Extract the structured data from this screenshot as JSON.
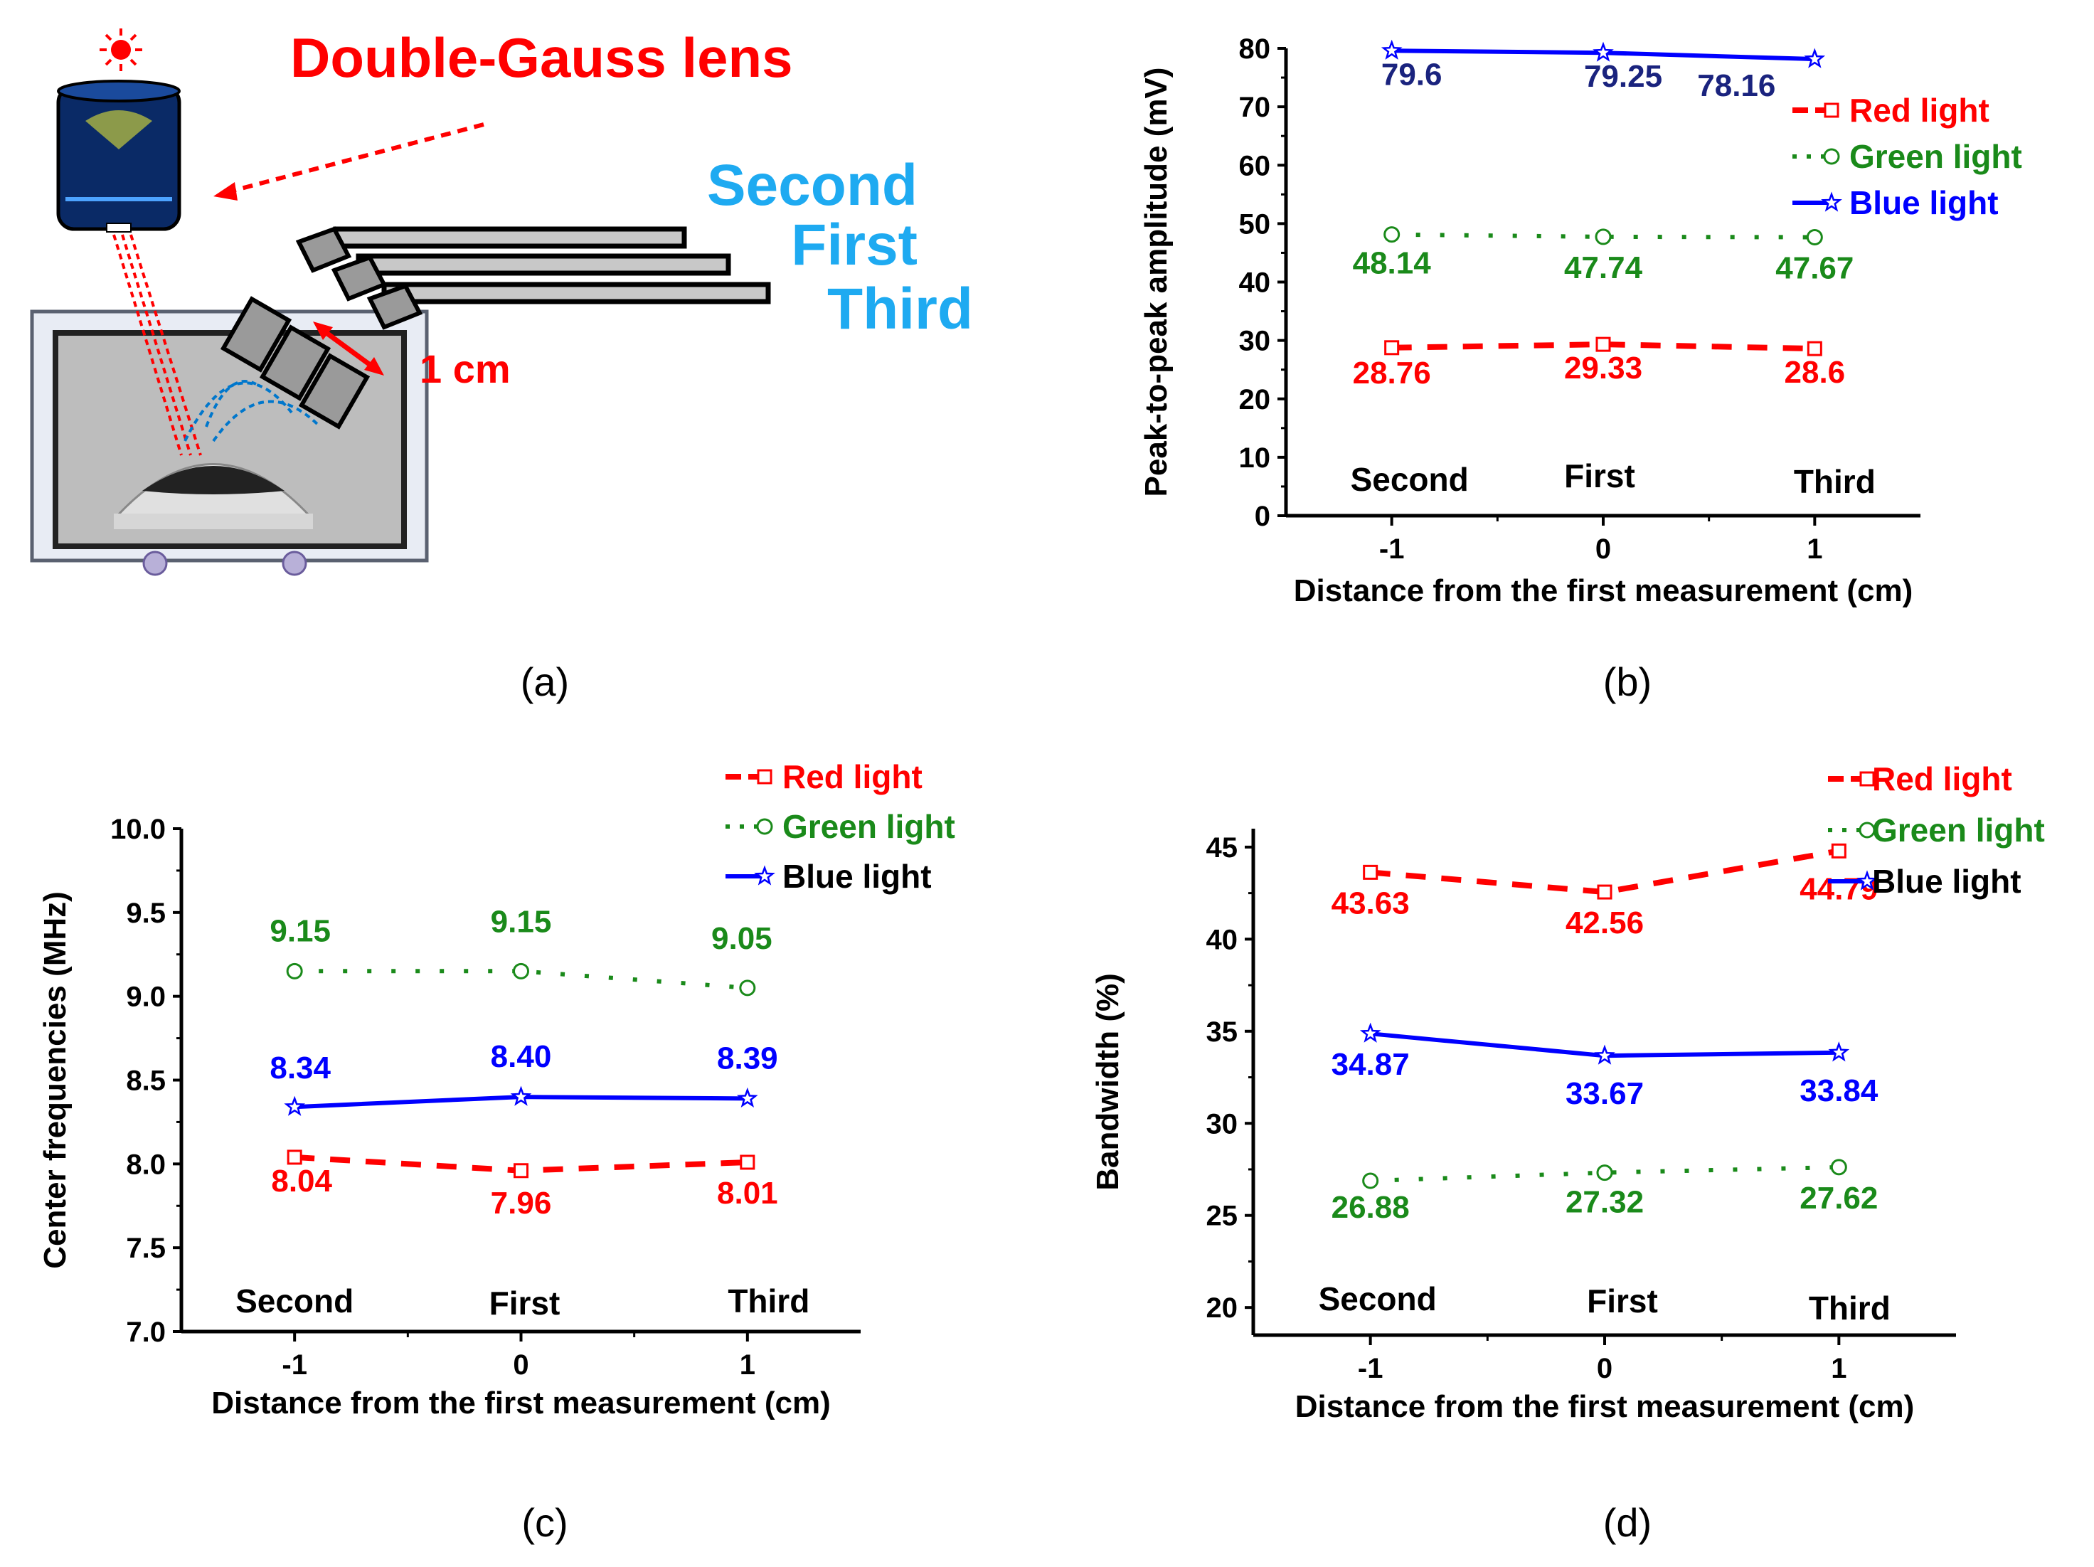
{
  "panel_labels": [
    "(a)",
    "(b)",
    "(c)",
    "(d)"
  ],
  "diagram": {
    "lens_label": "Double-Gauss lens",
    "position_labels": [
      "Second",
      "First",
      "Third"
    ],
    "spacing_label": "1 cm"
  },
  "colors": {
    "red": "#ff0000",
    "green": "#1a8a1a",
    "blue": "#0000ff",
    "navy": "#1a237e",
    "cyan": "#1eaaf1"
  },
  "chart_data": [
    {
      "id": "b",
      "type": "line",
      "title": "",
      "xlabel": "Distance from the first measurement (cm)",
      "ylabel": "Peak-to-peak amplitude (mV)",
      "x": [
        -1,
        0,
        1
      ],
      "xticks": [
        "-1",
        "0",
        "1"
      ],
      "xlim": [
        -1.5,
        1.5
      ],
      "ylim": [
        0,
        80
      ],
      "yticks": [
        "0",
        "10",
        "20",
        "30",
        "40",
        "50",
        "60",
        "70",
        "80"
      ],
      "position_labels": [
        "Second",
        "First",
        "Third"
      ],
      "legend": "top-right",
      "series": [
        {
          "name": "Red light",
          "values": [
            28.76,
            29.33,
            28.6
          ],
          "labels": [
            "28.76",
            "29.33",
            "28.6"
          ]
        },
        {
          "name": "Green light",
          "values": [
            48.14,
            47.74,
            47.67
          ],
          "labels": [
            "48.14",
            "47.74",
            "47.67"
          ]
        },
        {
          "name": "Blue light",
          "values": [
            79.6,
            79.25,
            78.16
          ],
          "labels": [
            "79.6",
            "79.25",
            "78.16"
          ]
        }
      ]
    },
    {
      "id": "c",
      "type": "line",
      "title": "",
      "xlabel": "Distance from the first measurement (cm)",
      "ylabel": "Center frequencies (MHz)",
      "x": [
        -1,
        0,
        1
      ],
      "xticks": [
        "-1",
        "0",
        "1"
      ],
      "xlim": [
        -1.5,
        1.5
      ],
      "ylim": [
        7.0,
        10.0
      ],
      "yticks": [
        "7.0",
        "7.5",
        "8.0",
        "8.5",
        "9.0",
        "9.5",
        "10.0"
      ],
      "position_labels": [
        "Second",
        "First",
        "Third"
      ],
      "legend": "top-right",
      "series": [
        {
          "name": "Red light",
          "values": [
            8.04,
            7.96,
            8.01
          ],
          "labels": [
            "8.04",
            "7.96",
            "8.01"
          ]
        },
        {
          "name": "Green light",
          "values": [
            9.15,
            9.15,
            9.05
          ],
          "labels": [
            "9.15",
            "9.15",
            "9.05"
          ]
        },
        {
          "name": "Blue light",
          "values": [
            8.34,
            8.4,
            8.39
          ],
          "labels": [
            "8.34",
            "8.40",
            "8.39"
          ]
        }
      ]
    },
    {
      "id": "d",
      "type": "line",
      "title": "",
      "xlabel": "Distance from the first measurement (cm)",
      "ylabel": "Bandwidth (%)",
      "x": [
        -1,
        0,
        1
      ],
      "xticks": [
        "-1",
        "0",
        "1"
      ],
      "xlim": [
        -1.5,
        1.5
      ],
      "ylim": [
        18.5,
        46
      ],
      "yticks": [
        "20",
        "25",
        "30",
        "35",
        "40",
        "45"
      ],
      "position_labels": [
        "Second",
        "First",
        "Third"
      ],
      "legend": "top-right",
      "series": [
        {
          "name": "Red light",
          "values": [
            43.63,
            42.56,
            44.79
          ],
          "labels": [
            "43.63",
            "42.56",
            "44.79"
          ]
        },
        {
          "name": "Green light",
          "values": [
            26.88,
            27.32,
            27.62
          ],
          "labels": [
            "26.88",
            "27.32",
            "27.62"
          ]
        },
        {
          "name": "Blue light",
          "values": [
            34.87,
            33.67,
            33.84
          ],
          "labels": [
            "34.87",
            "33.67",
            "33.84"
          ]
        }
      ]
    }
  ]
}
